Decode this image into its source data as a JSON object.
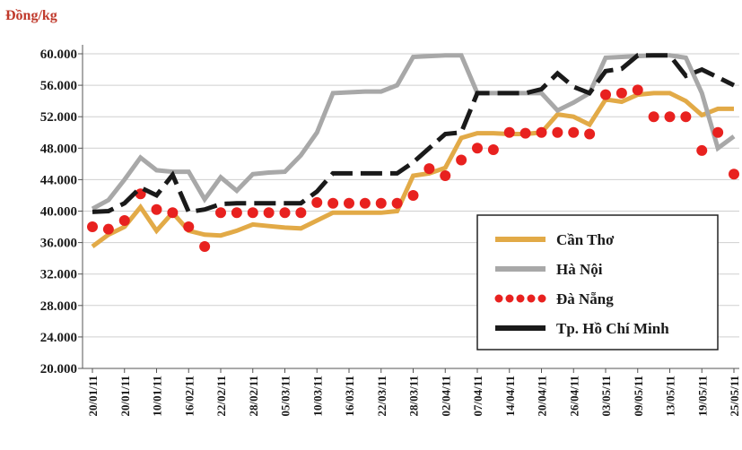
{
  "chart_data": {
    "type": "line",
    "y_label": "Đồng/kg",
    "categories": [
      "20/01/11",
      null,
      "20/01/11",
      null,
      "10/01/11",
      null,
      "16/02/11",
      null,
      "22/02/11",
      null,
      "28/02/11",
      null,
      "05/03/11",
      null,
      "10/03/11",
      null,
      "16/03/11",
      null,
      "22/03/11",
      null,
      "28/03/11",
      null,
      "02/04/11",
      null,
      "07/04/11",
      null,
      "14/04/11",
      null,
      "20/04/11",
      null,
      "26/04/11",
      null,
      "03/05/11",
      null,
      "09/05/11",
      null,
      "13/05/11",
      null,
      "19/05/11",
      null,
      "25/05/11"
    ],
    "series": [
      {
        "name": "Cần Thơ",
        "color": "#e2aa47",
        "style": "solid",
        "values": [
          35500,
          37000,
          38000,
          40500,
          37500,
          39800,
          37500,
          37000,
          36900,
          37500,
          38300,
          38100,
          37900,
          37800,
          38800,
          39800,
          39800,
          39800,
          39800,
          40000,
          44500,
          44800,
          45500,
          49300,
          49900,
          49900,
          49800,
          49800,
          50000,
          52300,
          52000,
          51000,
          54200,
          53900,
          54800,
          55000,
          55000,
          54000,
          52200,
          53000,
          53000
        ]
      },
      {
        "name": "Hà Nội",
        "color": "#a8a8a8",
        "style": "solid",
        "values": [
          40300,
          41400,
          44000,
          46800,
          45200,
          45000,
          45000,
          41500,
          44300,
          42600,
          44700,
          44900,
          45000,
          47100,
          50000,
          55000,
          55100,
          55200,
          55200,
          56000,
          59600,
          59700,
          59800,
          59800,
          55000,
          55000,
          55000,
          55000,
          55000,
          52800,
          53800,
          55000,
          59500,
          59600,
          59700,
          59800,
          59800,
          59500,
          55000,
          48000,
          49500
        ]
      },
      {
        "name": "Đà Nẵng",
        "color": "#e8211f",
        "style": "dotted",
        "values": [
          38000,
          37700,
          38800,
          42200,
          40200,
          39800,
          38000,
          35500,
          39800,
          39800,
          39800,
          39800,
          39800,
          39800,
          41100,
          41000,
          41000,
          41000,
          41000,
          41000,
          42000,
          45400,
          44500,
          46500,
          48000,
          47800,
          50000,
          49900,
          50000,
          50000,
          50000,
          49800,
          54800,
          55000,
          55400,
          52000,
          52000,
          52000,
          47700,
          50000,
          44700
        ]
      },
      {
        "name": "Tp. Hồ Chí Minh",
        "color": "#1a1a1a",
        "style": "dashed",
        "values": [
          39900,
          40000,
          41000,
          43000,
          42000,
          44600,
          39900,
          40200,
          40900,
          41000,
          41000,
          41000,
          41000,
          41000,
          42500,
          44800,
          44800,
          44800,
          44800,
          44800,
          46200,
          48000,
          49800,
          50000,
          55000,
          55000,
          55000,
          55000,
          55500,
          57500,
          55800,
          55000,
          57800,
          58100,
          59800,
          59800,
          59800,
          57200,
          58000,
          57000,
          56000
        ]
      }
    ],
    "ylim": [
      20000,
      60000
    ],
    "yticks": [
      {
        "value": 20000,
        "label": "20.000"
      },
      {
        "value": 24000,
        "label": "24.000"
      },
      {
        "value": 28000,
        "label": "28.000"
      },
      {
        "value": 32000,
        "label": "32.000"
      },
      {
        "value": 36000,
        "label": "36.000"
      },
      {
        "value": 40000,
        "label": "40.000"
      },
      {
        "value": 44000,
        "label": "44.000"
      },
      {
        "value": 48000,
        "label": "48.000"
      },
      {
        "value": 52000,
        "label": "52.000"
      },
      {
        "value": 56000,
        "label": "56.000"
      },
      {
        "value": 60000,
        "label": "60.000"
      }
    ],
    "grid": true,
    "legend": "lower right"
  }
}
